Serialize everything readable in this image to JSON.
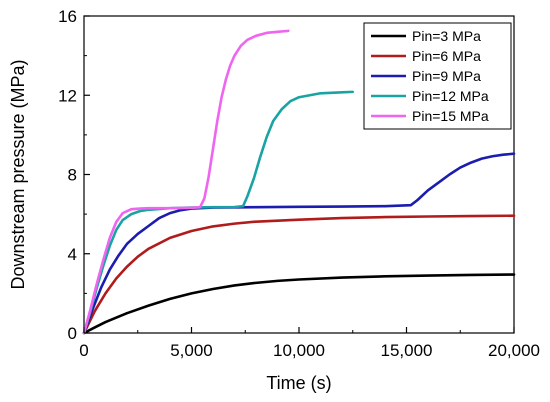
{
  "chart_data": {
    "type": "line",
    "title": "",
    "xlabel": "Time (s)",
    "ylabel": "Downstream pressure (MPa)",
    "xlim": [
      0,
      20000
    ],
    "ylim": [
      0,
      16
    ],
    "x_ticks": [
      0,
      5000,
      10000,
      15000,
      20000
    ],
    "x_tick_labels": [
      "0",
      "5,000",
      "10,000",
      "15,000",
      "20,000"
    ],
    "y_ticks": [
      0,
      4,
      8,
      12,
      16
    ],
    "y_tick_labels": [
      "0",
      "4",
      "8",
      "12",
      "16"
    ],
    "grid": false,
    "legend_position": "top-right",
    "series": [
      {
        "name": "Pin=3 MPa",
        "color": "#000000",
        "points": [
          [
            0,
            0
          ],
          [
            500,
            0.28
          ],
          [
            1000,
            0.55
          ],
          [
            2000,
            1.0
          ],
          [
            3000,
            1.38
          ],
          [
            4000,
            1.72
          ],
          [
            5000,
            2.0
          ],
          [
            6000,
            2.22
          ],
          [
            7000,
            2.4
          ],
          [
            8000,
            2.53
          ],
          [
            9000,
            2.63
          ],
          [
            10000,
            2.7
          ],
          [
            12000,
            2.8
          ],
          [
            14000,
            2.86
          ],
          [
            16000,
            2.9
          ],
          [
            18000,
            2.93
          ],
          [
            20000,
            2.95
          ]
        ]
      },
      {
        "name": "Pin=6 MPa",
        "color": "#b01c1c",
        "points": [
          [
            0,
            0
          ],
          [
            500,
            1.1
          ],
          [
            1000,
            2.0
          ],
          [
            1500,
            2.75
          ],
          [
            2000,
            3.35
          ],
          [
            2500,
            3.85
          ],
          [
            3000,
            4.25
          ],
          [
            4000,
            4.8
          ],
          [
            5000,
            5.15
          ],
          [
            6000,
            5.38
          ],
          [
            7000,
            5.52
          ],
          [
            8000,
            5.62
          ],
          [
            10000,
            5.72
          ],
          [
            12000,
            5.8
          ],
          [
            14000,
            5.85
          ],
          [
            16000,
            5.88
          ],
          [
            18000,
            5.9
          ],
          [
            20000,
            5.92
          ]
        ]
      },
      {
        "name": "Pin=9 MPa",
        "color": "#1c1cae",
        "points": [
          [
            0,
            0
          ],
          [
            400,
            1.2
          ],
          [
            800,
            2.3
          ],
          [
            1200,
            3.2
          ],
          [
            1600,
            3.9
          ],
          [
            2000,
            4.5
          ],
          [
            2500,
            5.0
          ],
          [
            3000,
            5.4
          ],
          [
            3500,
            5.8
          ],
          [
            4000,
            6.05
          ],
          [
            4500,
            6.2
          ],
          [
            5000,
            6.28
          ],
          [
            6000,
            6.33
          ],
          [
            8000,
            6.35
          ],
          [
            10000,
            6.37
          ],
          [
            12000,
            6.38
          ],
          [
            14000,
            6.4
          ],
          [
            15200,
            6.45
          ],
          [
            15500,
            6.7
          ],
          [
            16000,
            7.2
          ],
          [
            16500,
            7.6
          ],
          [
            17000,
            8.0
          ],
          [
            17500,
            8.35
          ],
          [
            18000,
            8.6
          ],
          [
            18500,
            8.8
          ],
          [
            19000,
            8.92
          ],
          [
            19500,
            9.0
          ],
          [
            20000,
            9.05
          ]
        ]
      },
      {
        "name": "Pin=12 MPa",
        "color": "#1aa3a3",
        "points": [
          [
            0,
            0
          ],
          [
            300,
            1.1
          ],
          [
            600,
            2.3
          ],
          [
            900,
            3.4
          ],
          [
            1200,
            4.4
          ],
          [
            1500,
            5.2
          ],
          [
            1800,
            5.7
          ],
          [
            2200,
            6.0
          ],
          [
            2600,
            6.15
          ],
          [
            3000,
            6.22
          ],
          [
            4000,
            6.3
          ],
          [
            5000,
            6.33
          ],
          [
            6000,
            6.35
          ],
          [
            7000,
            6.36
          ],
          [
            7400,
            6.4
          ],
          [
            7600,
            6.9
          ],
          [
            7900,
            7.8
          ],
          [
            8200,
            8.9
          ],
          [
            8500,
            9.9
          ],
          [
            8800,
            10.7
          ],
          [
            9200,
            11.3
          ],
          [
            9600,
            11.7
          ],
          [
            10000,
            11.9
          ],
          [
            10500,
            12.0
          ],
          [
            11000,
            12.1
          ],
          [
            12000,
            12.15
          ],
          [
            12500,
            12.17
          ]
        ]
      },
      {
        "name": "Pin=15 MPa",
        "color": "#f065f0",
        "points": [
          [
            0,
            0
          ],
          [
            300,
            1.2
          ],
          [
            600,
            2.5
          ],
          [
            900,
            3.7
          ],
          [
            1200,
            4.8
          ],
          [
            1500,
            5.6
          ],
          [
            1800,
            6.05
          ],
          [
            2200,
            6.25
          ],
          [
            2600,
            6.28
          ],
          [
            3000,
            6.3
          ],
          [
            4000,
            6.3
          ],
          [
            5000,
            6.32
          ],
          [
            5400,
            6.35
          ],
          [
            5600,
            6.8
          ],
          [
            5800,
            7.9
          ],
          [
            6000,
            9.3
          ],
          [
            6200,
            10.7
          ],
          [
            6400,
            11.9
          ],
          [
            6600,
            12.8
          ],
          [
            6800,
            13.5
          ],
          [
            7000,
            14.0
          ],
          [
            7300,
            14.5
          ],
          [
            7600,
            14.8
          ],
          [
            8000,
            15.0
          ],
          [
            8500,
            15.15
          ],
          [
            9000,
            15.2
          ],
          [
            9500,
            15.25
          ]
        ]
      }
    ]
  }
}
